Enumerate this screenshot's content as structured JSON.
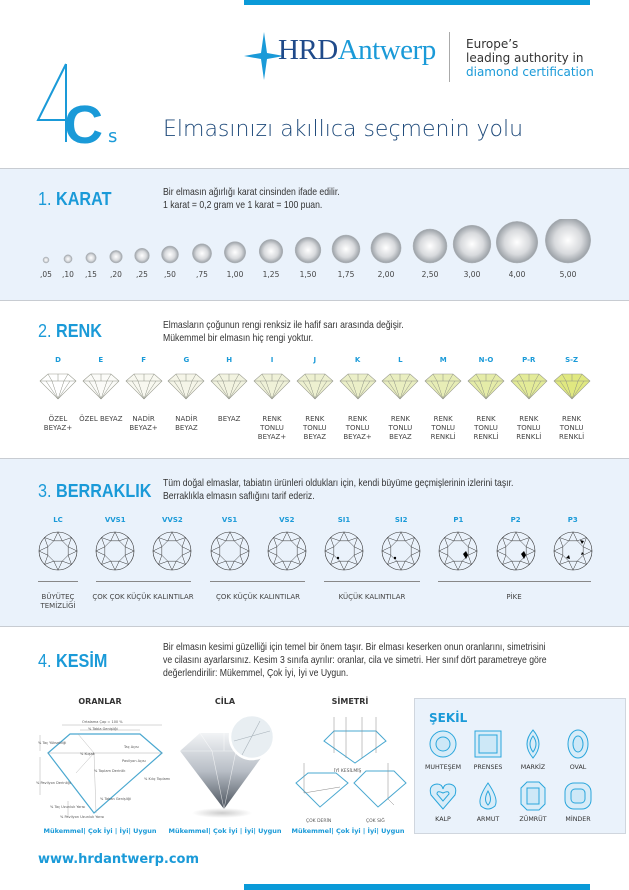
{
  "header": {
    "logo": {
      "hrd": "HRD",
      "antwerp": "Antwerp"
    },
    "tagline": [
      "Europe’s",
      "leading authority in",
      "diamond certification"
    ],
    "four_cs": {
      "four": "4",
      "c": "C",
      "s": "s"
    },
    "subtitle": "Elmasınızı akıllıca seçmenin yolu"
  },
  "colors": {
    "accent": "#1a9ad8",
    "navy": "#1f4a8a",
    "panel": "#eaf2fb"
  },
  "karat": {
    "number": "1.",
    "title": "KARAT",
    "desc": [
      "Bir elmasın ağırlığı karat cinsinden ifade edilir.",
      "1 karat = 0,2 gram ve 1 karat = 100 puan."
    ],
    "weights": [
      ",05",
      ",10",
      ",15",
      ",20",
      ",25",
      ",50",
      ",75",
      "1,00",
      "1,25",
      "1,50",
      "1,75",
      "2,00",
      "2,50",
      "3,00",
      "4,00",
      "5,00"
    ]
  },
  "renk": {
    "number": "2.",
    "title": "RENK",
    "desc": [
      "Elmasların çoğunun rengi renksiz ile hafif sarı arasında değişir.",
      "Mükemmel bir elmasın hiç rengi yoktur."
    ],
    "grades": [
      {
        "code": "D",
        "label": [
          "ÖZEL",
          "BEYAZ+"
        ],
        "tint": "#ffffff"
      },
      {
        "code": "E",
        "label": [
          "ÖZEL BEYAZ"
        ],
        "tint": "#fbfbf8"
      },
      {
        "code": "F",
        "label": [
          "NADİR",
          "BEYAZ+"
        ],
        "tint": "#f8f8f0"
      },
      {
        "code": "G",
        "label": [
          "NADİR",
          "BEYAZ"
        ],
        "tint": "#f5f5e8"
      },
      {
        "code": "H",
        "label": [
          "BEYAZ"
        ],
        "tint": "#f2f3e0"
      },
      {
        "code": "I",
        "label": [
          "RENK",
          "TONLU",
          "BEYAZ+"
        ],
        "tint": "#eff1d8"
      },
      {
        "code": "J",
        "label": [
          "RENK",
          "TONLU",
          "BEYAZ"
        ],
        "tint": "#edf0d0"
      },
      {
        "code": "K",
        "label": [
          "RENK",
          "TONLU",
          "BEYAZ+"
        ],
        "tint": "#ebefc8"
      },
      {
        "code": "L",
        "label": [
          "RENK",
          "TONLU",
          "BEYAZ"
        ],
        "tint": "#e9eec0"
      },
      {
        "code": "M",
        "label": [
          "RENK",
          "TONLU",
          "RENKLİ"
        ],
        "tint": "#e7edb6"
      },
      {
        "code": "N-O",
        "label": [
          "RENK",
          "TONLU",
          "RENKLİ"
        ],
        "tint": "#e5eca8"
      },
      {
        "code": "P-R",
        "label": [
          "RENK",
          "TONLU",
          "RENKLİ"
        ],
        "tint": "#e3eb98"
      },
      {
        "code": "S-Z",
        "label": [
          "RENK",
          "TONLU",
          "RENKLİ"
        ],
        "tint": "#e0e880"
      }
    ]
  },
  "berraklik": {
    "number": "3.",
    "title": "BERRAKLIK",
    "desc": [
      "Tüm doğal elmaslar, tabiatın ürünleri oldukları için, kendi büyüme geçmişlerinin izlerini taşır.",
      "Berraklıkla elmasın saflığını tarif ederiz."
    ],
    "grades": [
      {
        "code": "LC",
        "inclusions": 0
      },
      {
        "code": "VVS1",
        "inclusions": 0
      },
      {
        "code": "VVS2",
        "inclusions": 0
      },
      {
        "code": "VS1",
        "inclusions": 0
      },
      {
        "code": "VS2",
        "inclusions": 0
      },
      {
        "code": "SI1",
        "inclusions": 1
      },
      {
        "code": "SI2",
        "inclusions": 1
      },
      {
        "code": "P1",
        "inclusions": 2
      },
      {
        "code": "P2",
        "inclusions": 2
      },
      {
        "code": "P3",
        "inclusions": 3
      }
    ],
    "groups": [
      {
        "label": [
          "BÜYÜTEÇ",
          "TEMİZLİĞİ"
        ]
      },
      {
        "label": [
          "ÇOK ÇOK KÜÇÜK KALINTILAR"
        ]
      },
      {
        "label": [
          "ÇOK KÜÇÜK KALINTILAR"
        ]
      },
      {
        "label": [
          "KÜÇÜK KALINTILAR"
        ]
      },
      {
        "label": [
          "PİKE"
        ]
      }
    ]
  },
  "kesim": {
    "number": "4.",
    "title": "KESİM",
    "desc": [
      "Bir elmasın kesimi güzelliği için temel bir önem taşır. Bir elması keserken onun oranlarını, simetrisini",
      "ve cilasını ayarlarsınız. Kesim 3 sınıfa ayrılır: oranlar, cila ve simetri. Her sınıf dört parametreye göre",
      "değerlendirilir: Mükemmel, Çok İyi, İyi ve Uygun."
    ],
    "columns": [
      {
        "title": "ORANLAR",
        "rating": "Mükemmel| Çok İyi | İyi| Uygun"
      },
      {
        "title": "CİLA",
        "rating": "Mükemmel| Çok İyi | İyi| Uygun"
      },
      {
        "title": "SİMETRİ",
        "rating": "Mükemmel| Çok İyi | İyi| Uygun"
      }
    ],
    "proportion_labels": [
      "Ortalama Çap = 100 %",
      "% Tabla Genişliği",
      "% Taç Yüksekliği",
      "% Kuşak",
      "Taç Açısı",
      "Pavilyon Açısı",
      "% Toplam Derinlik",
      "% Kılıç Toplamı",
      "% Pavilyon Derinliği",
      "% Taban Genişliği",
      "% Taç Uzunluk Yarısı",
      "% Pavilyon Uzunluk Yarısı"
    ],
    "symmetry_labels": {
      "good": "İYİ KESİLMİŞ",
      "deep": "ÇOK DERİN",
      "shallow": "ÇOK SIĞ"
    }
  },
  "sekil": {
    "title": "ŞEKİL",
    "shapes": [
      "MUHTEŞEM",
      "PRENSES",
      "MARKİZ",
      "OVAL",
      "KALP",
      "ARMUT",
      "ZÜMRÜT",
      "MİNDER"
    ]
  },
  "footer": {
    "url": "www.hrdantwerp.com"
  }
}
